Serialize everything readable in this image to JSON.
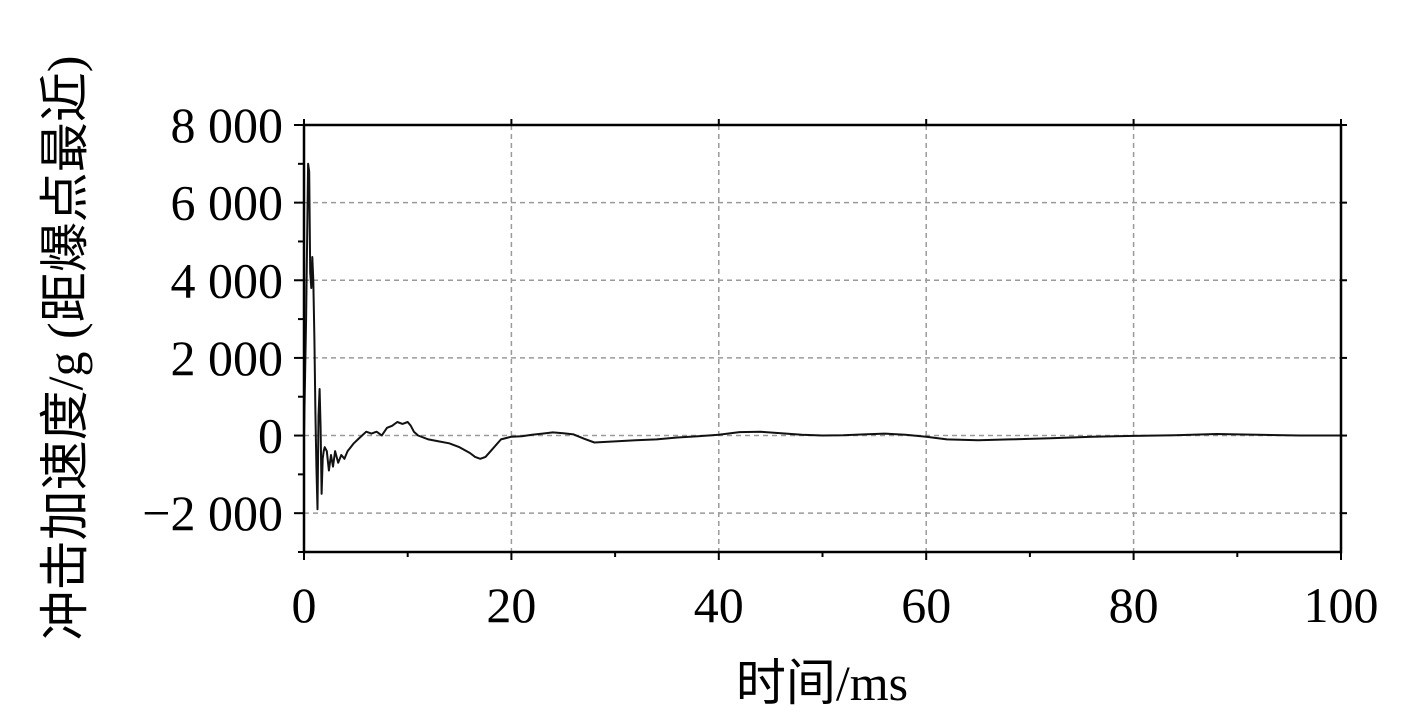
{
  "chart_data": {
    "type": "line",
    "xlabel": "时间/ms",
    "ylabel": "冲击加速度/g (距爆点最近)",
    "xlim": [
      0,
      100
    ],
    "ylim": [
      -3000,
      8000
    ],
    "x_ticks": [
      0,
      20,
      40,
      60,
      80,
      100
    ],
    "x_tick_labels": [
      "0",
      "20",
      "40",
      "60",
      "80",
      "100"
    ],
    "y_ticks": [
      -2000,
      0,
      2000,
      4000,
      6000,
      8000
    ],
    "y_tick_labels": [
      "−2 000",
      "0",
      "2 000",
      "4 000",
      "6 000",
      "8 000"
    ],
    "grid": true,
    "series": [
      {
        "x": [
          0,
          0.2,
          0.4,
          0.5,
          0.6,
          0.7,
          0.8,
          0.9,
          1.0,
          1.1,
          1.2,
          1.3,
          1.4,
          1.5,
          1.6,
          1.7,
          1.8,
          1.9,
          2.0,
          2.2,
          2.4,
          2.6,
          2.8,
          3.0,
          3.3,
          3.6,
          3.9,
          4.2,
          4.5,
          4.8,
          5.2,
          5.6,
          6.0,
          6.5,
          7.0,
          7.5,
          8.0,
          8.5,
          9.0,
          9.5,
          10.0,
          10.3,
          10.6,
          11.0,
          11.5,
          12.0,
          13.0,
          14.0,
          15.0,
          16.0,
          16.5,
          17.0,
          17.5,
          18.0,
          19.0,
          20.0,
          21.0,
          22.0,
          23.0,
          24.0,
          25.0,
          26.0,
          27.0,
          28.0,
          30.0,
          32.0,
          34.0,
          36.0,
          38.0,
          40.0,
          42.0,
          44.0,
          46.0,
          48.0,
          50.0,
          52.0,
          54.0,
          56.0,
          58.0,
          60.0,
          62.0,
          65.0,
          68.0,
          72.0,
          76.0,
          80.0,
          84.0,
          88.0,
          92.0,
          96.0,
          100.0
        ],
        "y": [
          0,
          3000,
          7000,
          6800,
          4200,
          3800,
          4600,
          4000,
          2500,
          600,
          -800,
          -1900,
          500,
          1200,
          200,
          -1500,
          -600,
          -400,
          -300,
          -400,
          -900,
          -500,
          -800,
          -400,
          -700,
          -500,
          -600,
          -400,
          -300,
          -200,
          -100,
          0,
          100,
          50,
          100,
          0,
          200,
          250,
          350,
          300,
          350,
          250,
          100,
          0,
          -50,
          -100,
          -150,
          -200,
          -300,
          -450,
          -550,
          -600,
          -550,
          -400,
          -100,
          -30,
          -20,
          20,
          50,
          80,
          60,
          30,
          -80,
          -180,
          -150,
          -120,
          -100,
          -50,
          -20,
          20,
          90,
          100,
          60,
          20,
          0,
          10,
          30,
          50,
          20,
          -30,
          -100,
          -120,
          -100,
          -70,
          -30,
          -10,
          10,
          40,
          20,
          0,
          0
        ]
      }
    ]
  }
}
